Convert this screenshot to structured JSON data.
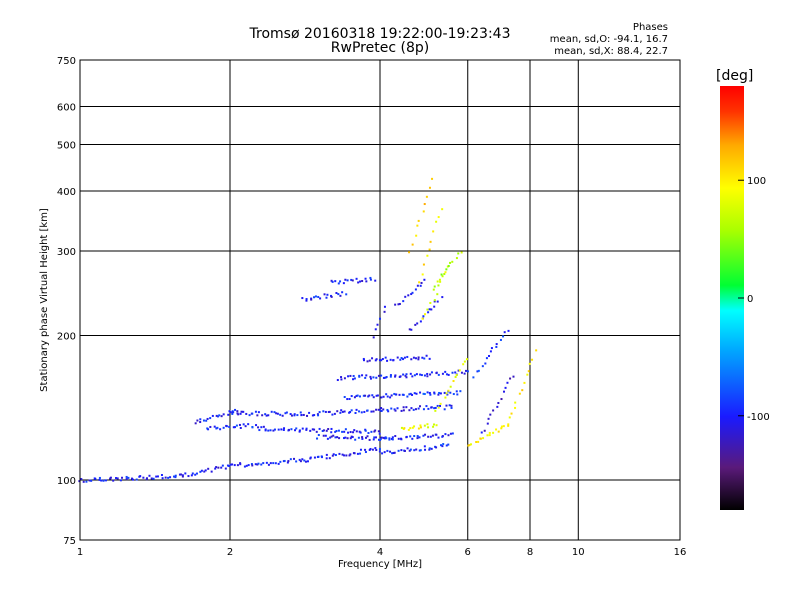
{
  "header": {
    "title_line1": "Tromsø 20160318 19:22:00-19:23:43",
    "title_line2": "RwPretec (8p)",
    "phases_title": "Phases",
    "phases_line1": "mean, sd,O: -94.1, 16.7",
    "phases_line2": "mean, sd,X:  88.4, 22.7"
  },
  "colorbar": {
    "label": "[deg]",
    "ticks": [
      {
        "label": "100",
        "value": 100
      },
      {
        "label": "0",
        "value": 0
      },
      {
        "label": "-100",
        "value": -100
      }
    ],
    "range": [
      -180,
      180
    ],
    "colors": [
      "#000000",
      "#5a1a7a",
      "#1a1aff",
      "#00aaff",
      "#00ffff",
      "#00ff33",
      "#aaff00",
      "#ffff00",
      "#ffaa00",
      "#ff3300",
      "#ff0000"
    ]
  },
  "chart_data": {
    "type": "scatter",
    "title": "Tromsø 20160318 19:22:00-19:23:43\nRwPretec (8p)",
    "xlabel": "Frequency [MHz]",
    "ylabel": "Stationary phase Virtual Height [km]",
    "xscale": "log",
    "yscale": "log",
    "xlim": [
      1,
      16
    ],
    "ylim": [
      75,
      750
    ],
    "xticks": [
      {
        "label": "1",
        "value": 1
      },
      {
        "label": "2",
        "value": 2
      },
      {
        "label": "4",
        "value": 4
      },
      {
        "label": "6",
        "value": 6
      },
      {
        "label": "8",
        "value": 8
      },
      {
        "label": "10",
        "value": 10
      },
      {
        "label": "16",
        "value": 16
      }
    ],
    "yticks": [
      {
        "label": "75",
        "value": 75
      },
      {
        "label": "100",
        "value": 100
      },
      {
        "label": "200",
        "value": 200
      },
      {
        "label": "300",
        "value": 300
      },
      {
        "label": "400",
        "value": 400
      },
      {
        "label": "500",
        "value": 500
      },
      {
        "label": "600",
        "value": 600
      },
      {
        "label": "750",
        "value": 750
      }
    ],
    "xgrid": [
      2,
      4,
      6,
      8,
      10
    ],
    "ygrid": [
      100,
      200,
      300,
      400,
      500,
      600
    ],
    "series": [
      {
        "traces": [
          {
            "f0": 1.0,
            "f1": 1.6,
            "h0": 100,
            "h1": 102,
            "phase": -100
          },
          {
            "f0": 1.6,
            "f1": 2.0,
            "h0": 102,
            "h1": 107,
            "phase": -105
          },
          {
            "f0": 2.0,
            "f1": 2.8,
            "h0": 107,
            "h1": 110,
            "phase": -100
          },
          {
            "f0": 2.8,
            "f1": 4.0,
            "h0": 110,
            "h1": 116,
            "phase": -100
          },
          {
            "f0": 4.0,
            "f1": 5.5,
            "h0": 114,
            "h1": 118,
            "phase": -95
          },
          {
            "f0": 1.7,
            "f1": 2.1,
            "h0": 132,
            "h1": 140,
            "phase": -100
          },
          {
            "f0": 2.0,
            "f1": 2.8,
            "h0": 138,
            "h1": 137,
            "phase": -100
          },
          {
            "f0": 2.8,
            "f1": 4.0,
            "h0": 137,
            "h1": 140,
            "phase": -100
          },
          {
            "f0": 4.0,
            "f1": 5.6,
            "h0": 140,
            "h1": 142,
            "phase": -100
          },
          {
            "f0": 1.8,
            "f1": 2.3,
            "h0": 128,
            "h1": 130,
            "phase": -95
          },
          {
            "f0": 2.3,
            "f1": 4.0,
            "h0": 128,
            "h1": 126,
            "phase": -100
          },
          {
            "f0": 3.0,
            "f1": 4.2,
            "h0": 123,
            "h1": 122,
            "phase": -100
          },
          {
            "f0": 4.0,
            "f1": 5.6,
            "h0": 122,
            "h1": 124,
            "phase": -100
          },
          {
            "f0": 3.3,
            "f1": 4.5,
            "h0": 163,
            "h1": 165,
            "phase": -100
          },
          {
            "f0": 4.5,
            "f1": 6.0,
            "h0": 165,
            "h1": 168,
            "phase": -100
          },
          {
            "f0": 3.7,
            "f1": 5.0,
            "h0": 178,
            "h1": 180,
            "phase": -100
          },
          {
            "f0": 3.4,
            "f1": 4.2,
            "h0": 148,
            "h1": 150,
            "phase": -100
          },
          {
            "f0": 4.2,
            "f1": 5.8,
            "h0": 150,
            "h1": 152,
            "phase": -90
          },
          {
            "f0": 3.2,
            "f1": 3.9,
            "h0": 258,
            "h1": 262,
            "phase": -100
          },
          {
            "f0": 3.9,
            "f1": 4.1,
            "h0": 200,
            "h1": 230,
            "phase": -100
          },
          {
            "f0": 4.3,
            "f1": 4.9,
            "h0": 230,
            "h1": 260,
            "phase": -100
          },
          {
            "f0": 4.6,
            "f1": 5.3,
            "h0": 205,
            "h1": 240,
            "phase": -100
          },
          {
            "f0": 4.9,
            "f1": 5.5,
            "h0": 215,
            "h1": 280,
            "phase": 80
          },
          {
            "f0": 5.1,
            "f1": 5.8,
            "h0": 250,
            "h1": 300,
            "phase": 60
          },
          {
            "f0": 4.6,
            "f1": 5.1,
            "h0": 300,
            "h1": 420,
            "phase": 110
          },
          {
            "f0": 4.8,
            "f1": 5.3,
            "h0": 260,
            "h1": 370,
            "phase": 100
          },
          {
            "f0": 2.8,
            "f1": 3.4,
            "h0": 238,
            "h1": 245,
            "phase": -100
          },
          {
            "f0": 4.4,
            "f1": 5.2,
            "h0": 128,
            "h1": 130,
            "phase": 90
          },
          {
            "f0": 5.2,
            "f1": 6.0,
            "h0": 140,
            "h1": 180,
            "phase": 90
          },
          {
            "f0": 6.0,
            "f1": 7.2,
            "h0": 118,
            "h1": 130,
            "phase": 95
          },
          {
            "f0": 7.2,
            "f1": 8.2,
            "h0": 130,
            "h1": 185,
            "phase": 100
          },
          {
            "f0": 6.2,
            "f1": 7.2,
            "h0": 165,
            "h1": 205,
            "phase": -90
          },
          {
            "f0": 6.4,
            "f1": 7.4,
            "h0": 125,
            "h1": 165,
            "phase": -110
          }
        ]
      }
    ]
  }
}
